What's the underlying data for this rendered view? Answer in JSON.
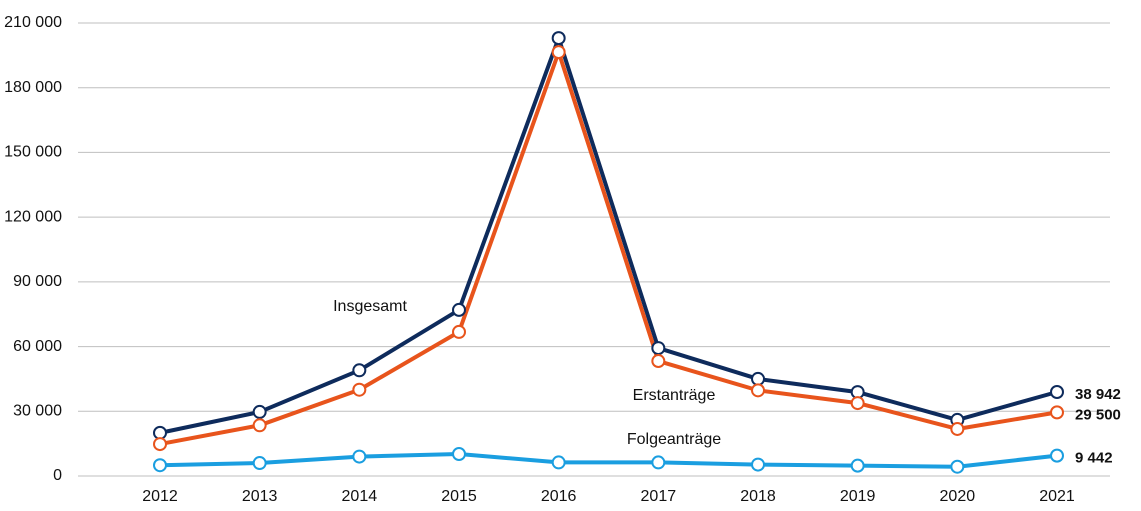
{
  "chart_data": {
    "type": "line",
    "categories": [
      "2012",
      "2013",
      "2014",
      "2015",
      "2016",
      "2017",
      "2018",
      "2019",
      "2020",
      "2021"
    ],
    "series": [
      {
        "name": "Insgesamt",
        "color": "#0e2b5c",
        "values": [
          20000,
          29700,
          49000,
          77000,
          203000,
          59300,
          45000,
          38900,
          26000,
          38942
        ],
        "value_labels": [
          null,
          null,
          null,
          null,
          null,
          null,
          null,
          null,
          null,
          "38 942"
        ]
      },
      {
        "name": "Erstanträge",
        "color": "#e8541c",
        "values": [
          14800,
          23500,
          40000,
          66800,
          196500,
          53300,
          39700,
          33800,
          21800,
          29500
        ],
        "value_labels": [
          null,
          null,
          null,
          null,
          null,
          null,
          null,
          null,
          null,
          "29 500"
        ]
      },
      {
        "name": "Folgeanträge",
        "color": "#1a9ee0",
        "values": [
          5000,
          6000,
          9000,
          10200,
          6300,
          6300,
          5300,
          4800,
          4300,
          9442
        ],
        "value_labels": [
          null,
          null,
          null,
          null,
          null,
          null,
          null,
          null,
          null,
          "9 442"
        ]
      }
    ],
    "ylim": [
      0,
      210000
    ],
    "yticks": [
      {
        "value": 0,
        "label": "0"
      },
      {
        "value": 30000,
        "label": "30 000"
      },
      {
        "value": 60000,
        "label": "60 000"
      },
      {
        "value": 90000,
        "label": "90 000"
      },
      {
        "value": 120000,
        "label": "120 000"
      },
      {
        "value": 150000,
        "label": "150 000"
      },
      {
        "value": 180000,
        "label": "180 000"
      },
      {
        "value": 210000,
        "label": "210 000"
      }
    ],
    "grid": true
  }
}
